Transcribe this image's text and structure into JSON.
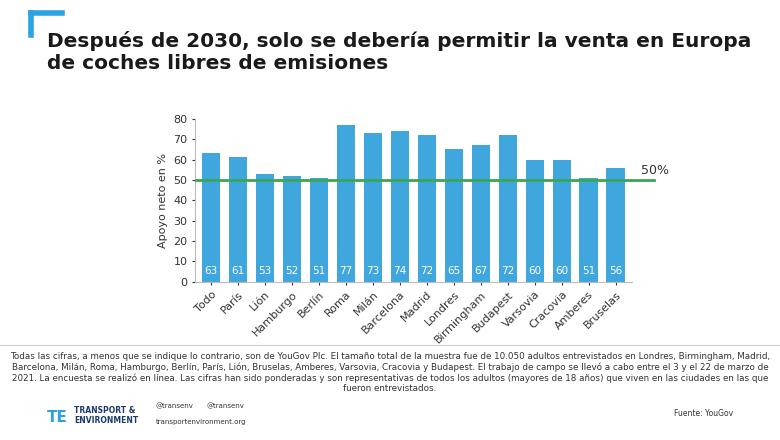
{
  "chart_data": {
    "type": "bar",
    "title": "Después de 2030, solo se debería permitir la venta en Europa de coches libres de emisiones",
    "y_label": "Apoyo neto en %",
    "categories": [
      "Todo",
      "París",
      "Lión",
      "Hamburgo",
      "Berlín",
      "Roma",
      "Milán",
      "Barcelona",
      "Madrid",
      "Londres",
      "Birmingham",
      "Budapest",
      "Varsovia",
      "Cracovia",
      "Amberes",
      "Bruselas"
    ],
    "values": [
      63,
      61,
      53,
      52,
      51,
      77,
      73,
      74,
      72,
      65,
      67,
      72,
      60,
      60,
      51,
      56
    ],
    "color": "#3fa6de",
    "ylim": [
      0,
      80
    ],
    "yticks": [
      0,
      10,
      20,
      30,
      40,
      50,
      60,
      70,
      80
    ],
    "grid": false,
    "data_labels": true,
    "reference_line": {
      "value": 50,
      "label": "50%",
      "color": "#3aa655"
    }
  },
  "note": "Todas las cifras, a menos que se indique lo contrario, son de YouGov Plc. El tamaño total de la muestra fue de 10.050 adultos entrevistados en Londres, Birmingham, Madrid, Barcelona, Milán, Roma, Hamburgo, Berlín, París, Lión, Bruselas, Amberes, Varsovia, Cracovia y Budapest. El trabajo de campo se llevó a cabo entre el 3 y el 22 de marzo de 2021. La encuesta se realizó en línea. Las cifras han sido ponderadas y son representativas de todos los adultos (mayores de 18 años) que viven en las ciudades en las que fueron entrevistados.",
  "source": "Fuente: YouGov",
  "branding": {
    "logo_mark": "TE",
    "name": "TRANSPORT &\nENVIRONMENT",
    "twitter": "@transenv",
    "facebook": "@transenv",
    "website": "transportenvironment.org"
  }
}
